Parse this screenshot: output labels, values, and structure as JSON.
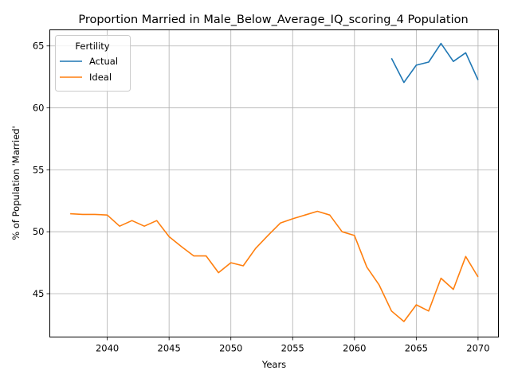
{
  "chart_data": {
    "type": "line",
    "title": "Proportion Married in Male_Below_Average_IQ_scoring_4 Population",
    "xlabel": "Years",
    "ylabel": "% of Population 'Married'",
    "xlim": [
      2035.35,
      2071.65
    ],
    "ylim": [
      41.5,
      66.3
    ],
    "xticks": [
      2040,
      2045,
      2050,
      2055,
      2060,
      2065,
      2070
    ],
    "yticks": [
      45,
      50,
      55,
      60,
      65
    ],
    "grid": true,
    "legend": {
      "title": "Fertility",
      "placement": "upper left"
    },
    "series": [
      {
        "name": "Actual",
        "color": "#1f77b4",
        "x": [
          2063,
          2064,
          2065,
          2066,
          2067,
          2068,
          2069,
          2070
        ],
        "y": [
          64.0,
          62.05,
          63.45,
          63.7,
          65.2,
          63.75,
          64.45,
          62.25
        ]
      },
      {
        "name": "Ideal",
        "color": "#ff7f0e",
        "x": [
          2037,
          2038,
          2039,
          2040,
          2041,
          2042,
          2043,
          2044,
          2045,
          2046,
          2047,
          2048,
          2049,
          2050,
          2051,
          2052,
          2053,
          2054,
          2055,
          2056,
          2057,
          2058,
          2059,
          2060,
          2061,
          2062,
          2063,
          2064,
          2065,
          2066,
          2067,
          2068,
          2069,
          2070
        ],
        "y": [
          51.45,
          51.4,
          51.4,
          51.35,
          50.45,
          50.9,
          50.45,
          50.9,
          49.6,
          48.8,
          48.05,
          48.05,
          46.7,
          47.5,
          47.25,
          48.65,
          49.7,
          50.7,
          51.05,
          51.35,
          51.65,
          51.35,
          50.0,
          49.7,
          47.15,
          45.7,
          43.6,
          42.75,
          44.1,
          43.6,
          46.25,
          45.35,
          48.0,
          46.35
        ]
      }
    ]
  }
}
